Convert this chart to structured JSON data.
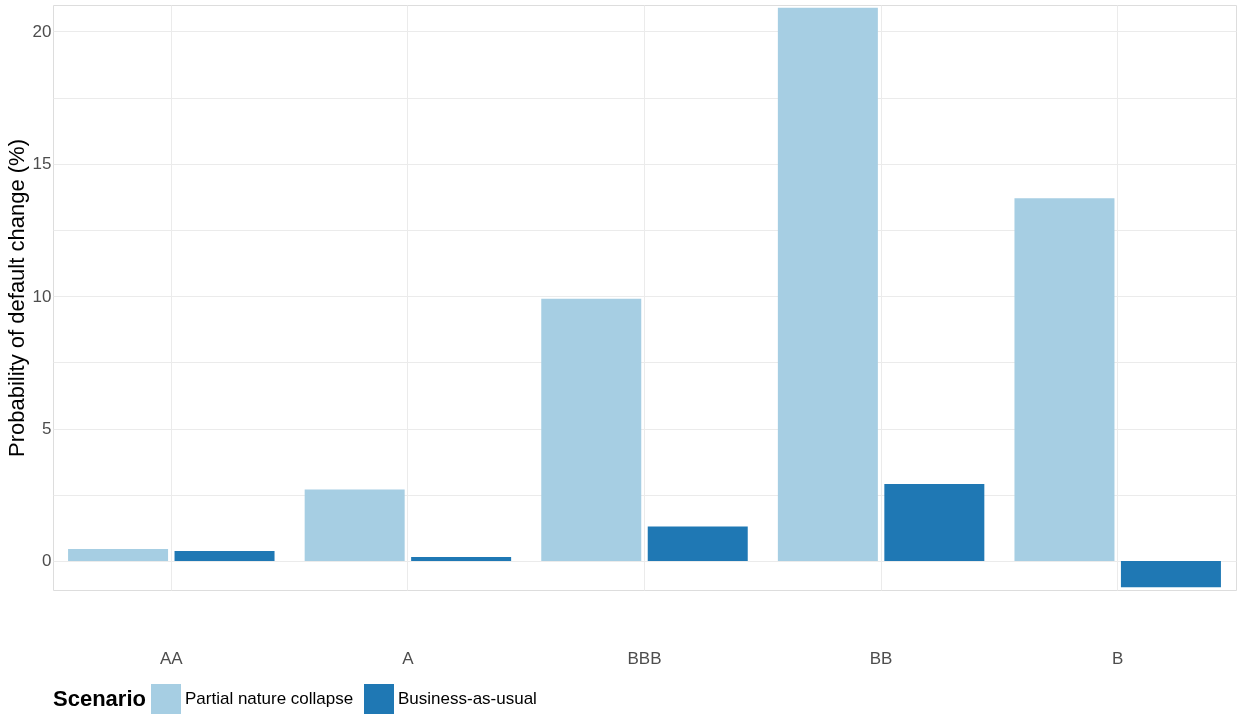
{
  "chart_data": {
    "type": "bar",
    "ylabel": "Probability of default change (%)",
    "legend_title": "Scenario",
    "categories": [
      "AA",
      "A",
      "BBB",
      "BB",
      "B"
    ],
    "series": [
      {
        "name": "Partial nature collapse",
        "color": "#a6cee3",
        "values": [
          0.45,
          2.7,
          9.9,
          20.9,
          13.7
        ]
      },
      {
        "name": "Business-as-usual",
        "color": "#1f78b4",
        "values": [
          0.37,
          0.15,
          1.3,
          2.9,
          -1.0
        ]
      }
    ],
    "ylim": [
      -1.1,
      21
    ],
    "yticks": [
      0,
      {
        "value": 2.5,
        "label": null
      },
      5,
      {
        "value": 7.5,
        "label": null
      },
      10,
      {
        "value": 12.5,
        "label": null
      },
      15,
      {
        "value": 17.5,
        "label": null
      },
      20
    ],
    "grid": true,
    "legend": "bottom"
  }
}
